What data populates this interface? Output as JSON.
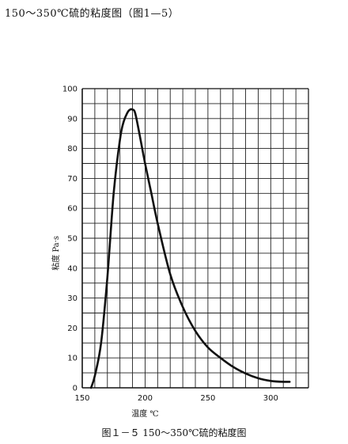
{
  "page_heading": "150～350℃硫的粘度图（图1—5）",
  "caption": "图１－５ 150～350℃硫的粘度图",
  "chart_data": {
    "type": "line",
    "title": "",
    "xlabel": "温度 ℃",
    "ylabel": "粘度 Pa·s",
    "xlim": [
      150,
      330
    ],
    "ylim": [
      0,
      100
    ],
    "x_ticks": [
      150,
      200,
      250,
      300
    ],
    "y_ticks": [
      0,
      10,
      20,
      30,
      40,
      50,
      60,
      70,
      80,
      90,
      100
    ],
    "grid": true,
    "series": [
      {
        "x": [
          157,
          160,
          165,
          170,
          175,
          180,
          183,
          186,
          188,
          190,
          192,
          195,
          200,
          205,
          210,
          220,
          230,
          240,
          250,
          260,
          270,
          280,
          290,
          300,
          310,
          315
        ],
        "y": [
          0,
          4,
          15,
          37,
          65,
          83,
          89,
          92,
          93,
          93,
          92,
          86,
          75,
          65,
          55,
          38,
          27,
          19,
          13.5,
          10,
          7,
          4.8,
          3.2,
          2.3,
          2,
          2
        ]
      }
    ],
    "colors": {
      "line": "#111111",
      "grid": "#222222",
      "axis": "#111111"
    }
  }
}
